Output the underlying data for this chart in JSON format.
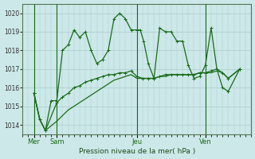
{
  "bg_color": "#cce8e8",
  "grid_color": "#aacccc",
  "line_color": "#1a6b1a",
  "xlabel": "Pression niveau de la mer( hPa )",
  "ylim": [
    1013.5,
    1020.5
  ],
  "yticks": [
    1014,
    1015,
    1016,
    1017,
    1018,
    1019,
    1020
  ],
  "xlim": [
    0,
    20
  ],
  "day_positions": [
    1,
    3,
    10,
    16
  ],
  "day_labels": [
    "Mer",
    "Sam",
    "Jeu",
    "Ven"
  ],
  "vline_x": [
    1,
    3,
    10,
    16
  ],
  "series1_x": [
    1,
    1.5,
    2,
    2.5,
    3,
    3.5,
    4,
    4.5,
    5,
    5.5,
    6,
    6.5,
    7,
    7.5,
    8,
    8.5,
    9,
    9.5,
    10,
    10.3,
    10.6,
    11,
    11.5,
    12,
    12.5,
    13,
    13.5,
    14,
    14.5,
    15,
    15.5,
    16,
    16.5,
    17,
    17.5,
    18,
    19
  ],
  "series1_y": [
    1015.7,
    1014.3,
    1013.7,
    1015.3,
    1015.3,
    1018.0,
    1018.3,
    1019.1,
    1018.7,
    1019.0,
    1018.0,
    1017.3,
    1017.5,
    1018.0,
    1019.7,
    1020.0,
    1019.7,
    1019.1,
    1019.1,
    1019.1,
    1018.5,
    1017.3,
    1016.5,
    1019.2,
    1019.0,
    1019.0,
    1018.5,
    1018.5,
    1017.2,
    1016.5,
    1016.6,
    1017.2,
    1019.2,
    1017.0,
    1016.0,
    1015.8,
    1017.0
  ],
  "series2_x": [
    1,
    1.5,
    2,
    3,
    3.5,
    4,
    4.5,
    5,
    5.5,
    6,
    6.5,
    7,
    7.5,
    8,
    8.5,
    9,
    9.5,
    10,
    10.5,
    11,
    11.5,
    12,
    12.5,
    13,
    13.5,
    14,
    14.5,
    15,
    15.5,
    16,
    16.5,
    17,
    17.5,
    18,
    19
  ],
  "series2_y": [
    1015.7,
    1014.3,
    1013.7,
    1015.2,
    1015.5,
    1015.7,
    1016.0,
    1016.1,
    1016.3,
    1016.4,
    1016.5,
    1016.6,
    1016.7,
    1016.7,
    1016.8,
    1016.8,
    1016.9,
    1016.6,
    1016.5,
    1016.5,
    1016.5,
    1016.6,
    1016.7,
    1016.7,
    1016.7,
    1016.7,
    1016.7,
    1016.7,
    1016.8,
    1016.8,
    1016.9,
    1017.0,
    1016.8,
    1016.5,
    1017.0
  ],
  "series3_x": [
    1,
    1.5,
    2,
    3,
    3.5,
    4,
    4.5,
    5,
    5.5,
    6,
    6.5,
    7,
    7.5,
    8,
    8.5,
    9,
    9.5,
    10,
    10.5,
    11,
    11.5,
    12,
    12.5,
    13,
    13.5,
    14,
    14.5,
    15,
    15.5,
    16,
    16.5,
    17,
    17.5,
    18,
    19
  ],
  "series3_y": [
    1015.7,
    1014.3,
    1013.7,
    1014.2,
    1014.5,
    1014.8,
    1015.0,
    1015.2,
    1015.4,
    1015.6,
    1015.8,
    1016.0,
    1016.2,
    1016.4,
    1016.5,
    1016.6,
    1016.7,
    1016.5,
    1016.5,
    1016.5,
    1016.5,
    1016.6,
    1016.6,
    1016.7,
    1016.7,
    1016.7,
    1016.7,
    1016.7,
    1016.8,
    1016.8,
    1016.8,
    1016.9,
    1016.8,
    1016.5,
    1017.0
  ]
}
